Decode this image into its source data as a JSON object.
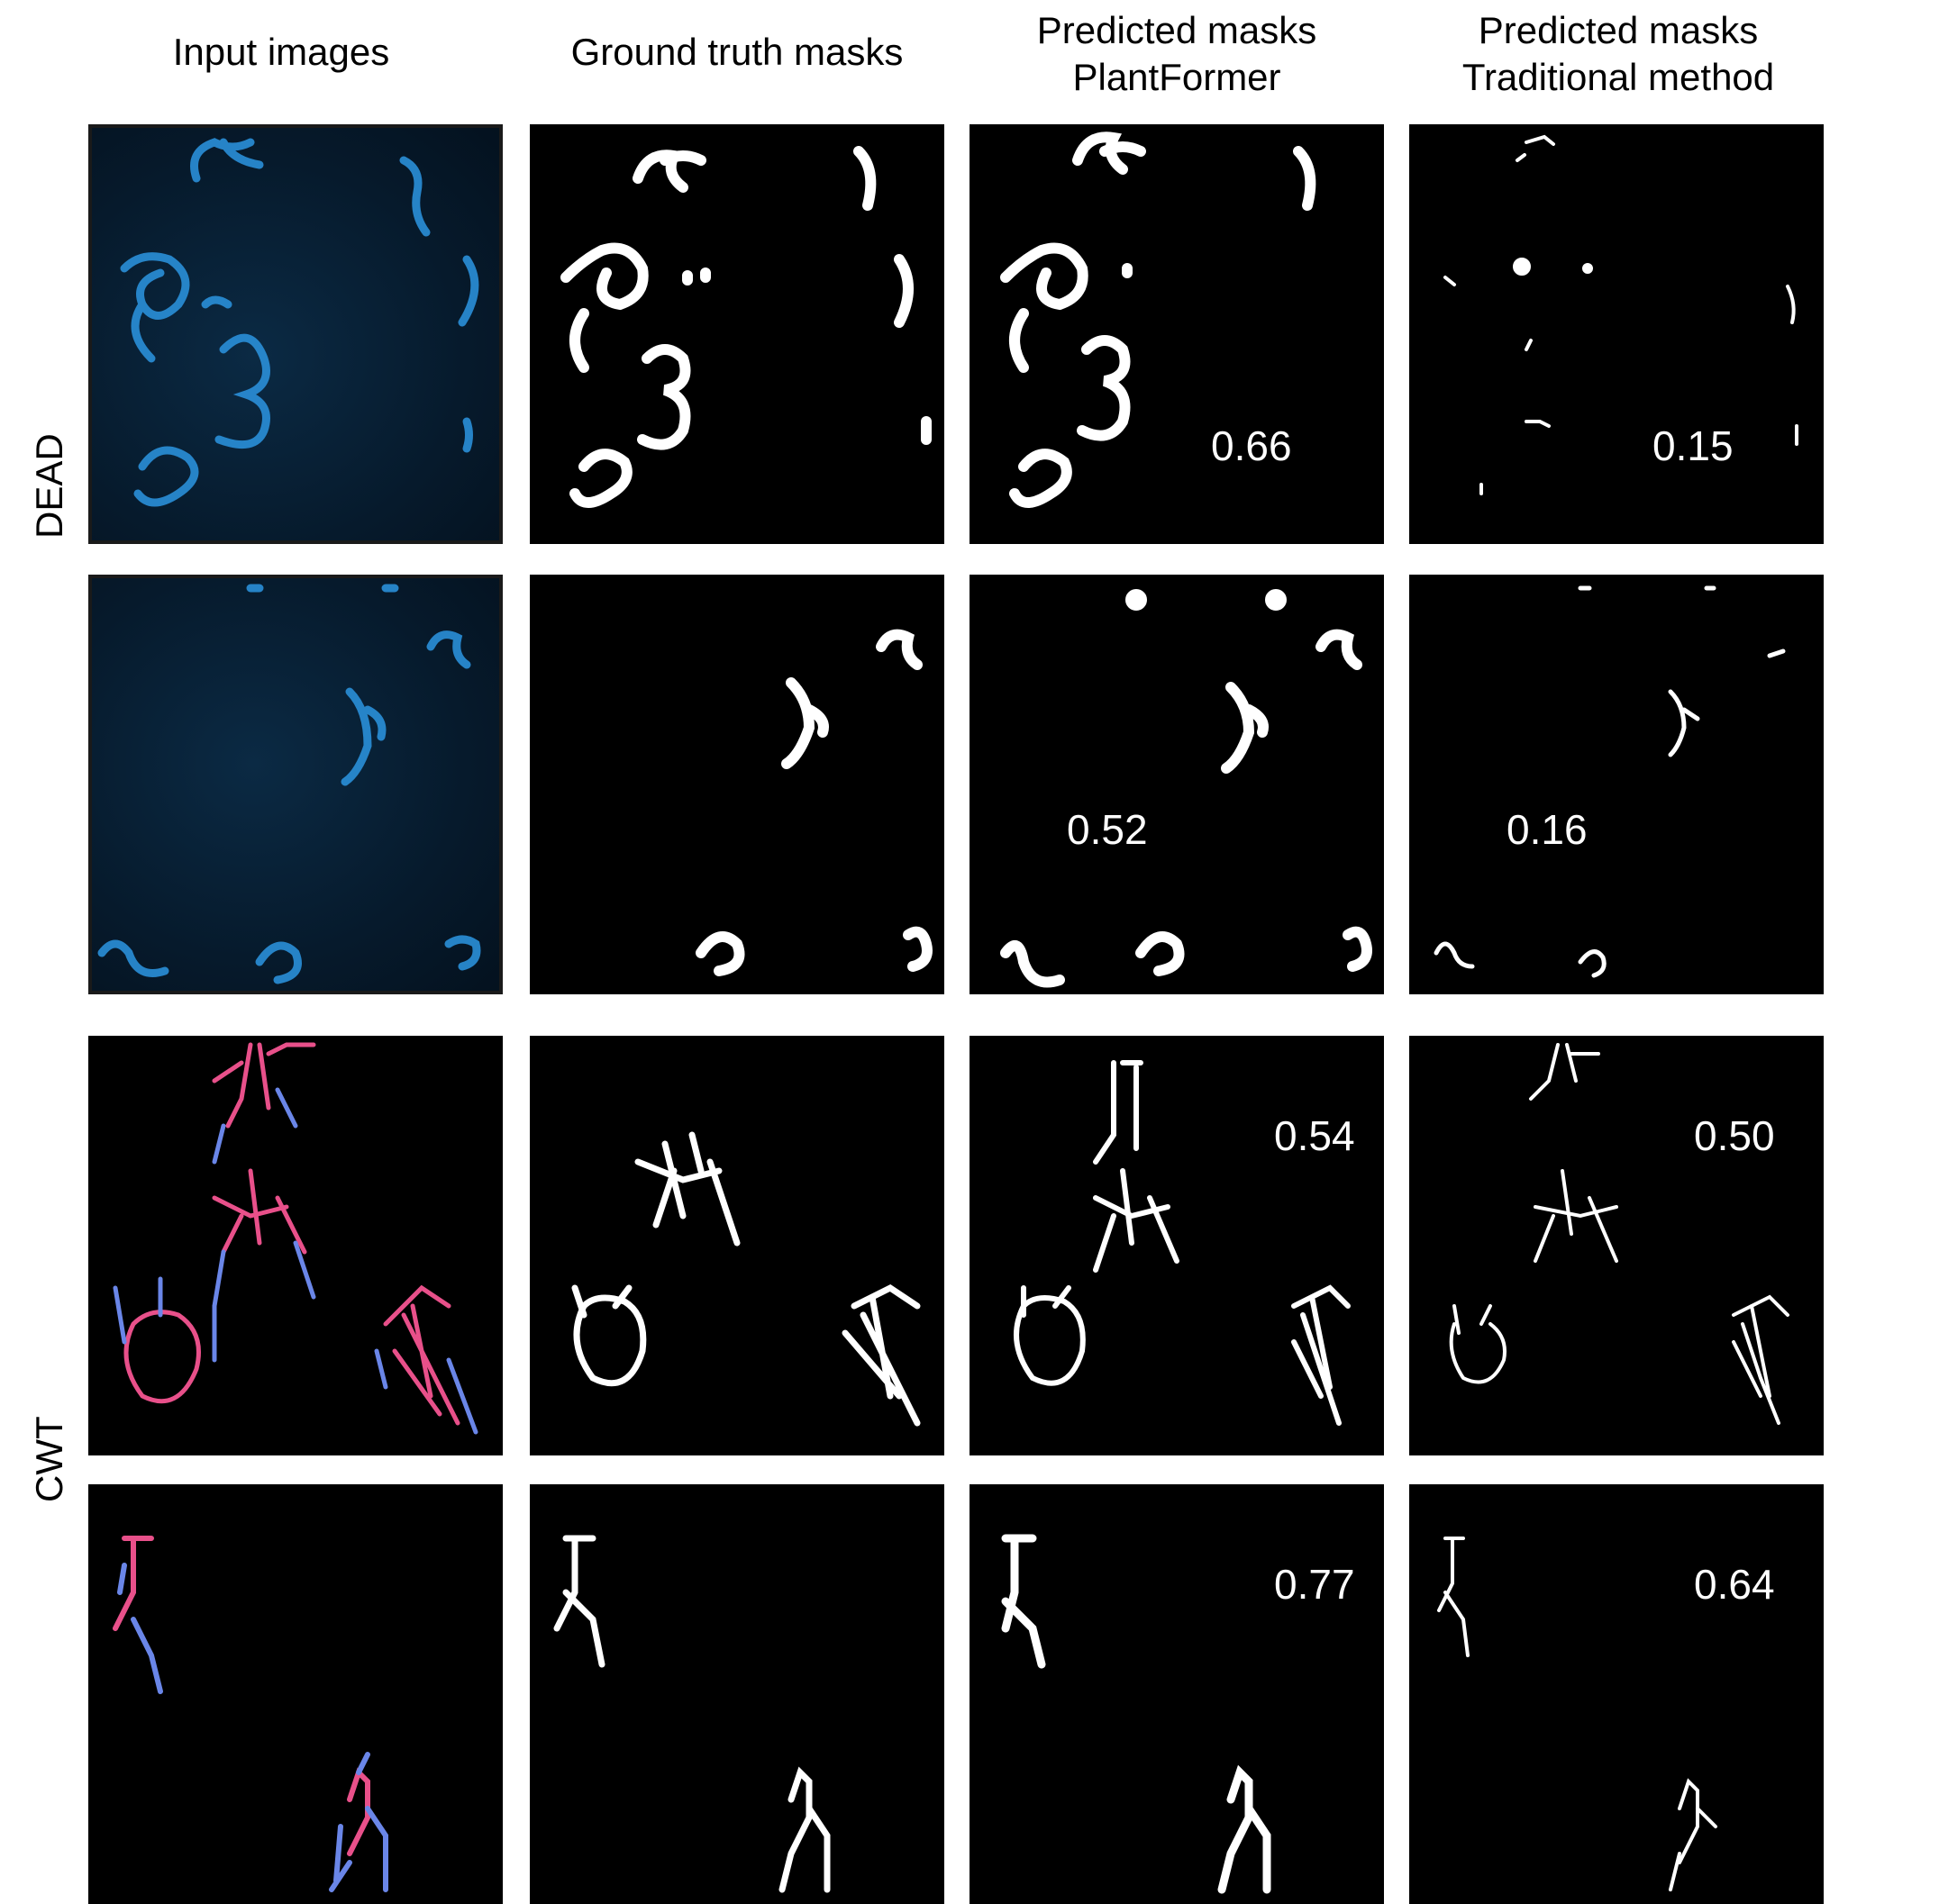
{
  "columns": {
    "input": "Input images",
    "ground_truth": "Ground truth masks",
    "plantformer_line1": "Predicted masks",
    "plantformer_line2": "PlantFormer",
    "traditional_line1": "Predicted masks",
    "traditional_line2": "Traditional method"
  },
  "groups": {
    "dead": "DEAD",
    "cwt": "CWT"
  },
  "scores": {
    "row1": {
      "plantformer": "0.66",
      "traditional": "0.15"
    },
    "row2": {
      "plantformer": "0.52",
      "traditional": "0.16"
    },
    "row3": {
      "plantformer": "0.54",
      "traditional": "0.50"
    },
    "row4": {
      "plantformer": "0.77",
      "traditional": "0.64"
    }
  },
  "colors": {
    "dead_fluorescence": "#2a8fd8",
    "dead_background": "#061828",
    "cwt_magenta": "#e8508a",
    "cwt_blue": "#6a86e8",
    "mask": "#ffffff"
  }
}
